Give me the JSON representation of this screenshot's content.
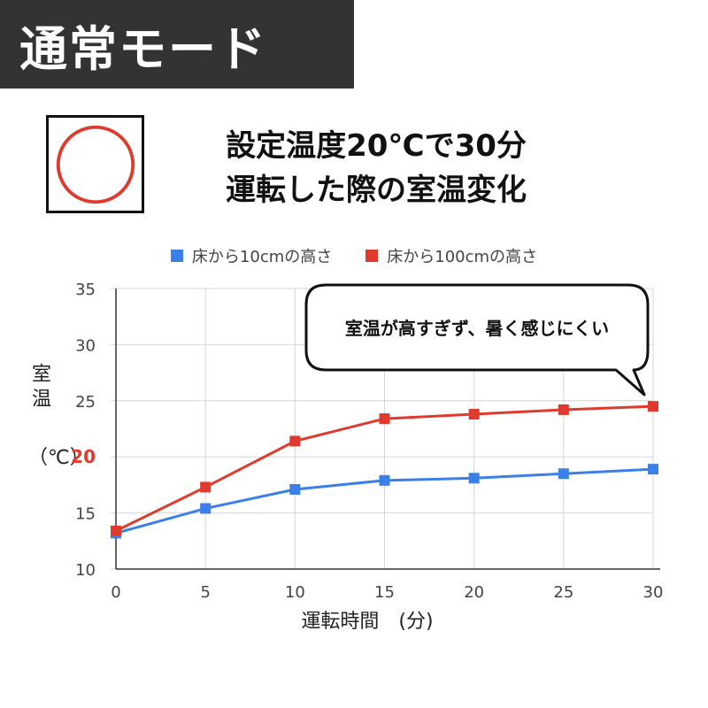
{
  "banner": {
    "label": "通常モード"
  },
  "rating": {
    "symbol": "circle-mark",
    "color": "#e03a2f"
  },
  "headline": {
    "line1": "設定温度20℃で30分",
    "line2": "運転した際の室温変化"
  },
  "callout": {
    "text": "室温が高すぎず、暑く感じにくい"
  },
  "colors": {
    "series_blue": "#3b7fe8",
    "series_red": "#e03a2f",
    "highlight_tick": "#e03a2f"
  },
  "chart_data": {
    "type": "line",
    "title": "",
    "xlabel": "運転時間　(分)",
    "ylabel_line1": "室",
    "ylabel_line2": "温",
    "ylabel_unit": "（℃）",
    "x": [
      0,
      5,
      10,
      15,
      20,
      25,
      30
    ],
    "x_ticks": [
      "0",
      "5",
      "10",
      "15",
      "20",
      "25",
      "30"
    ],
    "y_ticks": [
      "10",
      "15",
      "20",
      "25",
      "30",
      "35"
    ],
    "xlim": [
      0,
      30
    ],
    "ylim": [
      10,
      35
    ],
    "grid": true,
    "legend_position": "top-center",
    "highlight_y_tick": "20",
    "series": [
      {
        "name": "床から10cmの高さ",
        "color": "#3b7fe8",
        "values": [
          13.2,
          15.4,
          17.1,
          17.9,
          18.1,
          18.5,
          18.9
        ]
      },
      {
        "name": "床から100cmの高さ",
        "color": "#e03a2f",
        "values": [
          13.4,
          17.3,
          21.4,
          23.4,
          23.8,
          24.2,
          24.5
        ]
      }
    ]
  }
}
